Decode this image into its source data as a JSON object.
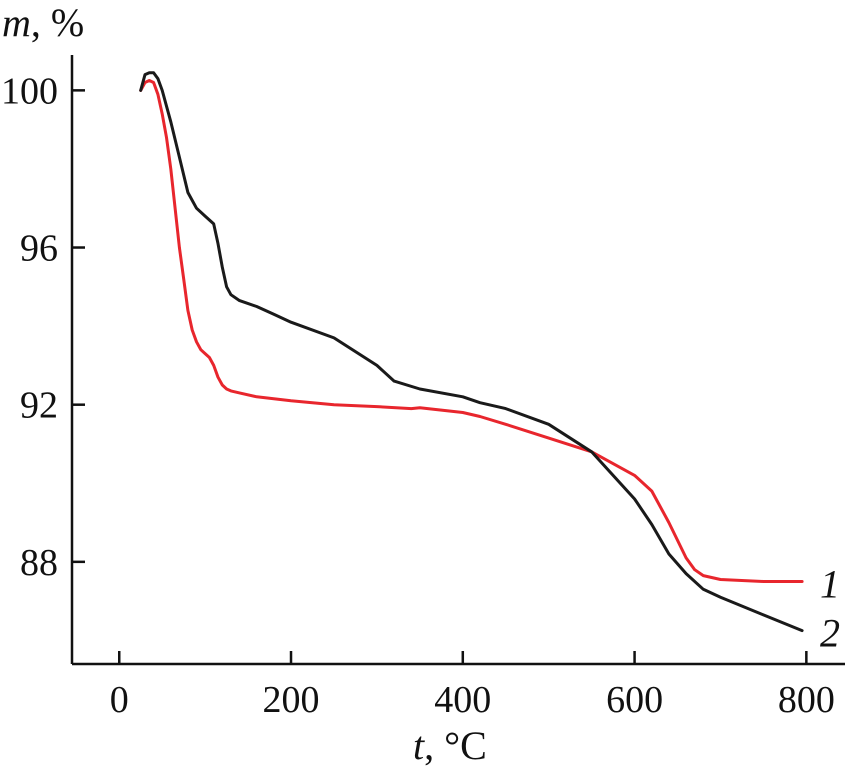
{
  "chart_data": {
    "type": "line",
    "xlabel": {
      "var": "t",
      "unit": ", °C"
    },
    "ylabel": {
      "var": "m",
      "unit": ", %"
    },
    "xlim": [
      -55,
      845
    ],
    "ylim": [
      85.4,
      100.9
    ],
    "xticks": [
      0,
      200,
      400,
      600,
      800
    ],
    "yticks": [
      88,
      92,
      96,
      100
    ],
    "grid": false,
    "series": [
      {
        "name": "1",
        "color": "#e8262d",
        "x": [
          25,
          30,
          35,
          40,
          45,
          50,
          55,
          60,
          65,
          70,
          75,
          80,
          85,
          90,
          95,
          100,
          105,
          110,
          115,
          120,
          125,
          130,
          140,
          160,
          180,
          200,
          250,
          300,
          340,
          350,
          400,
          420,
          450,
          500,
          550,
          600,
          620,
          640,
          660,
          670,
          680,
          700,
          750,
          795
        ],
        "y": [
          100.0,
          100.2,
          100.25,
          100.2,
          99.9,
          99.4,
          98.8,
          98.0,
          97.0,
          96.0,
          95.2,
          94.4,
          93.9,
          93.6,
          93.4,
          93.3,
          93.2,
          93.0,
          92.7,
          92.5,
          92.4,
          92.35,
          92.3,
          92.2,
          92.15,
          92.1,
          92.0,
          91.95,
          91.9,
          91.92,
          91.8,
          91.7,
          91.5,
          91.15,
          90.8,
          90.2,
          89.8,
          89.0,
          88.1,
          87.8,
          87.65,
          87.55,
          87.5,
          87.5
        ]
      },
      {
        "name": "2",
        "color": "#1a1a1a",
        "x": [
          25,
          30,
          35,
          40,
          45,
          50,
          55,
          60,
          70,
          80,
          90,
          100,
          110,
          115,
          120,
          125,
          130,
          140,
          160,
          180,
          200,
          250,
          300,
          320,
          350,
          400,
          420,
          450,
          500,
          550,
          600,
          620,
          640,
          660,
          680,
          700,
          750,
          795
        ],
        "y": [
          100.0,
          100.4,
          100.45,
          100.45,
          100.3,
          100.0,
          99.6,
          99.2,
          98.3,
          97.4,
          97.0,
          96.8,
          96.6,
          96.1,
          95.5,
          95.0,
          94.8,
          94.65,
          94.5,
          94.3,
          94.1,
          93.7,
          93.0,
          92.6,
          92.4,
          92.2,
          92.05,
          91.9,
          91.5,
          90.8,
          89.6,
          88.95,
          88.2,
          87.7,
          87.3,
          87.1,
          86.65,
          86.25
        ]
      }
    ],
    "series_labels": [
      {
        "text": "1",
        "series": 0
      },
      {
        "text": "2",
        "series": 1
      }
    ]
  }
}
